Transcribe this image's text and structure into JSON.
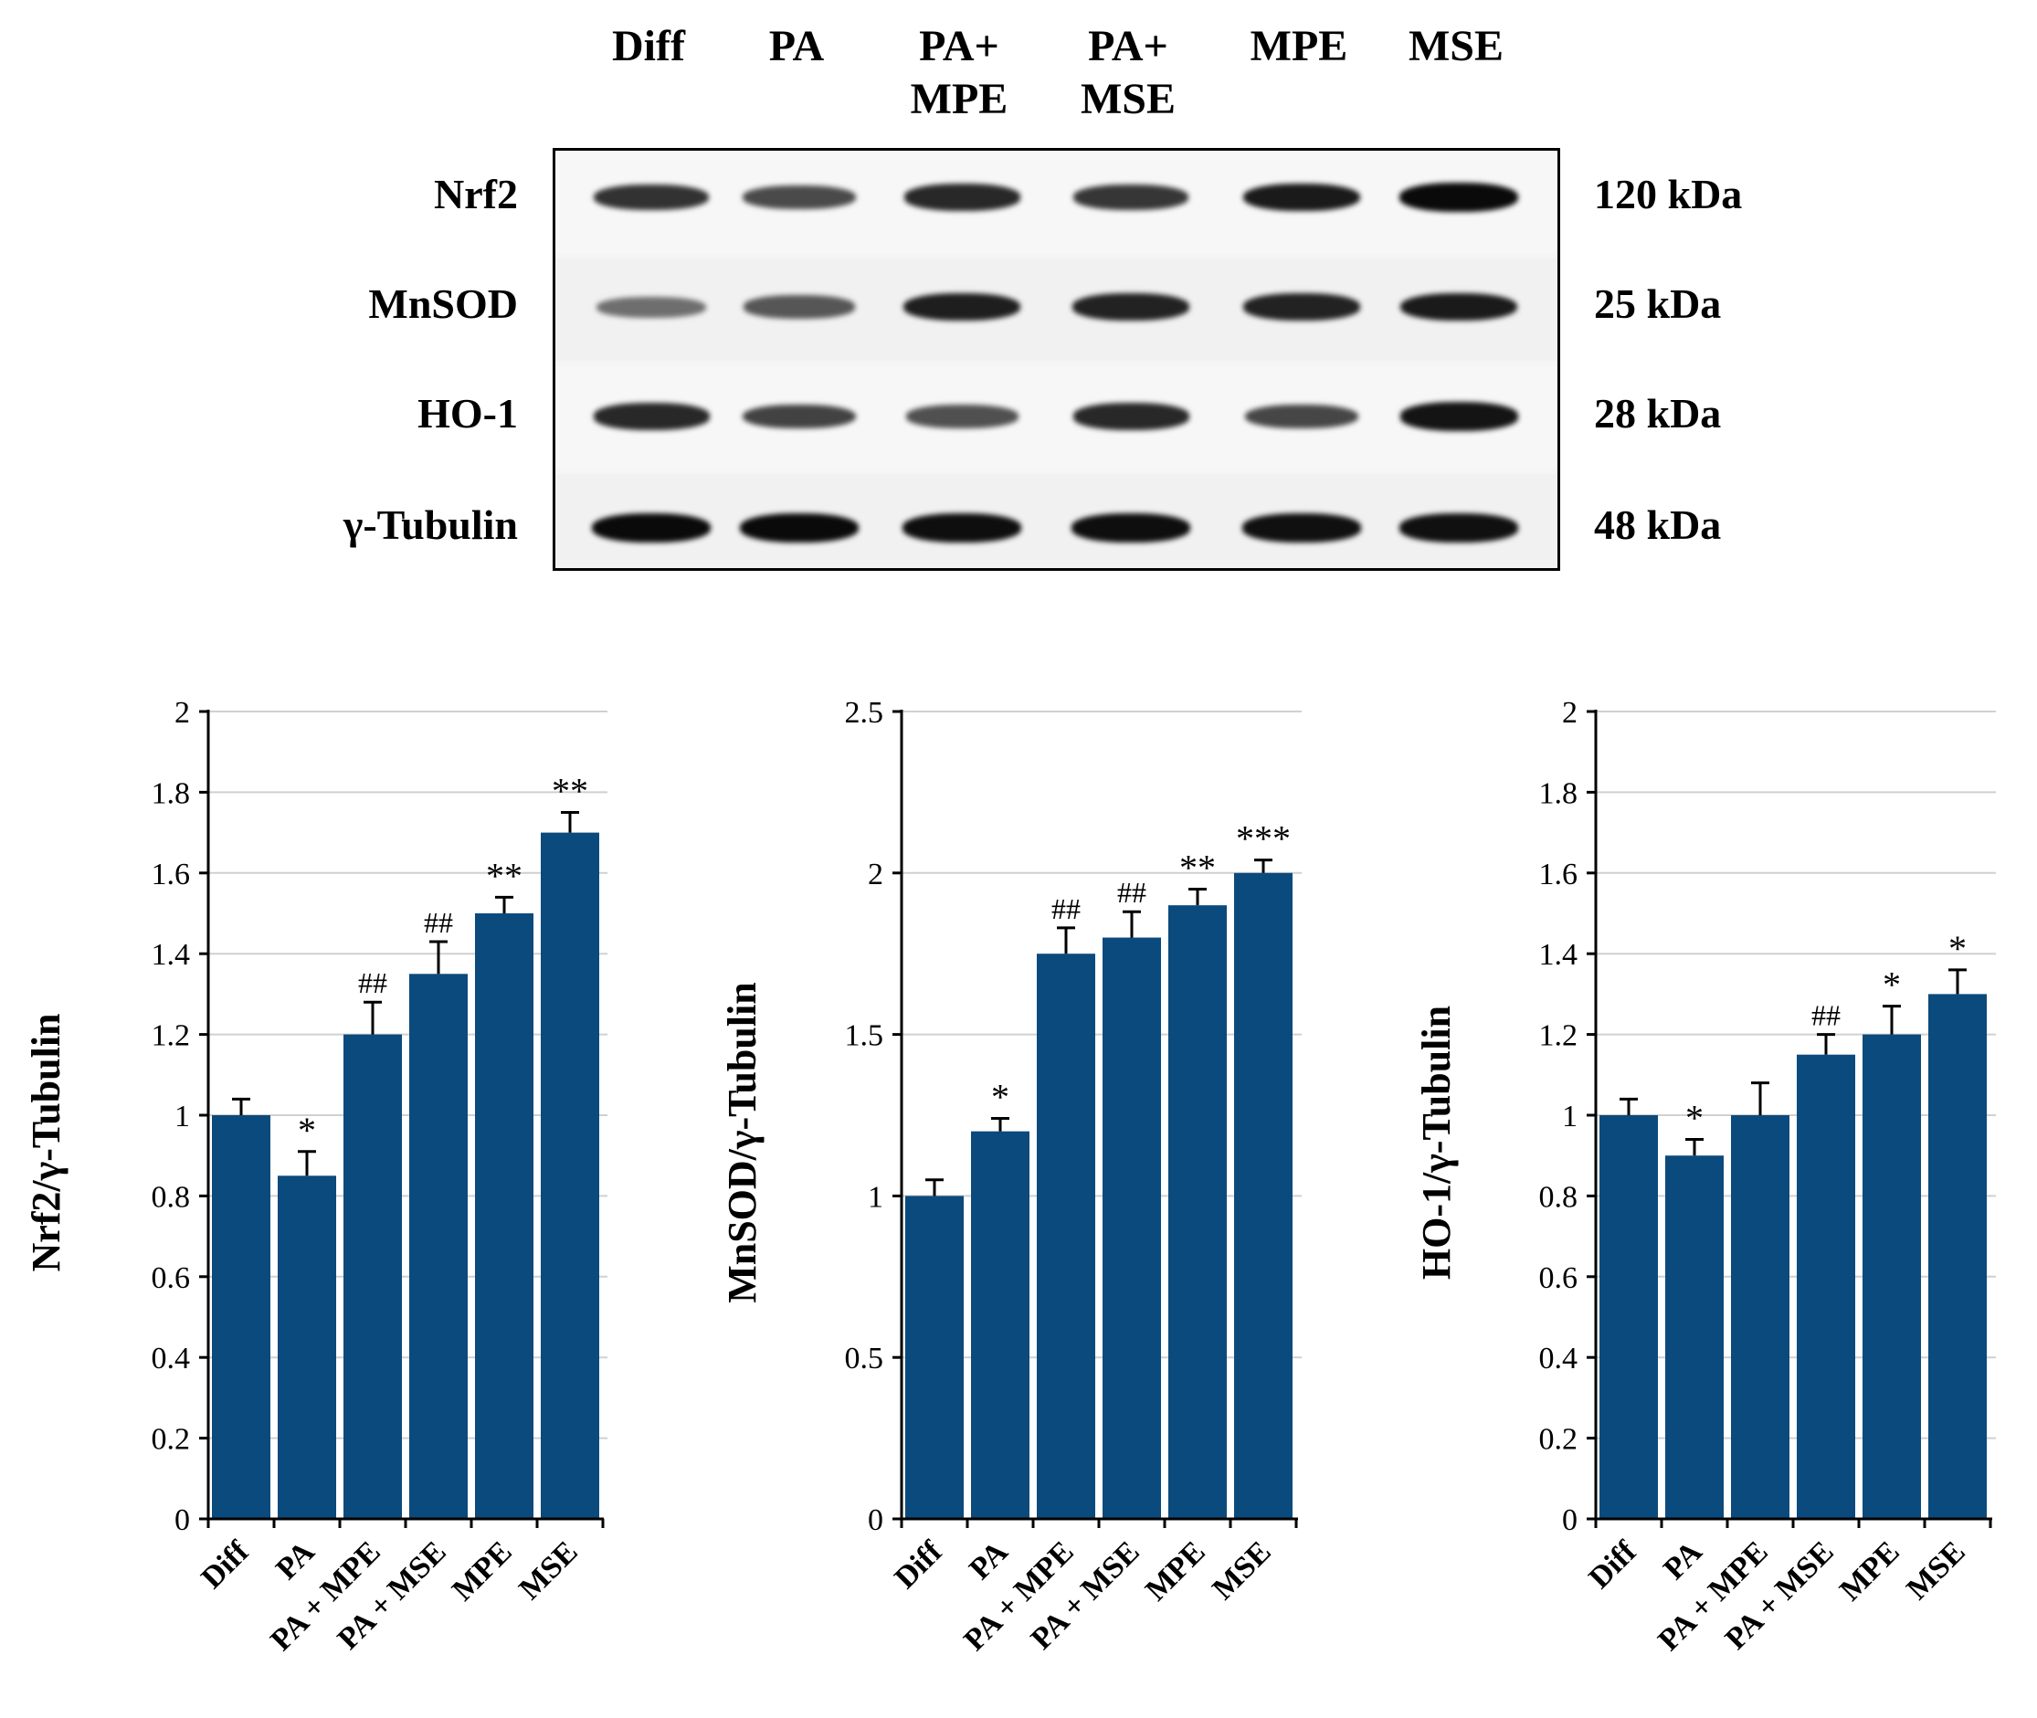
{
  "blot": {
    "lanes": [
      "Diff",
      "PA",
      "PA+\nMPE",
      "PA+\nMSE",
      "MPE",
      "MSE"
    ],
    "rows": [
      {
        "protein": "Nrf2",
        "size": "120 kDa",
        "intensity": [
          0.8,
          0.68,
          0.85,
          0.78,
          0.92,
          1.0
        ]
      },
      {
        "protein": "MnSOD",
        "size": "25 kDa",
        "intensity": [
          0.5,
          0.62,
          0.9,
          0.88,
          0.88,
          0.92
        ]
      },
      {
        "protein": "HO-1",
        "size": "28 kDa",
        "intensity": [
          0.85,
          0.72,
          0.65,
          0.85,
          0.7,
          0.95
        ]
      },
      {
        "protein": "γ-Tubulin",
        "size": "48 kDa",
        "intensity": [
          1.0,
          1.0,
          0.98,
          0.98,
          0.97,
          0.97
        ]
      }
    ]
  },
  "chart_data": [
    {
      "type": "bar",
      "categories": [
        "Diff",
        "PA",
        "PA + MPE",
        "PA + MSE",
        "MPE",
        "MSE"
      ],
      "values": [
        1.0,
        0.85,
        1.2,
        1.35,
        1.5,
        1.7
      ],
      "errors": [
        0.04,
        0.06,
        0.08,
        0.08,
        0.04,
        0.05
      ],
      "annotations": [
        "",
        "*",
        "##",
        "##",
        "**",
        "**"
      ],
      "ylabel": "Nrf2/γ-Tubulin",
      "ylim": [
        0,
        2
      ],
      "yticks": [
        "0",
        "0.2",
        "0.4",
        "0.6",
        "0.8",
        "1",
        "1.2",
        "1.4",
        "1.6",
        "1.8",
        "2"
      ],
      "grid": true,
      "color": "#0b4a7d"
    },
    {
      "type": "bar",
      "categories": [
        "Diff",
        "PA",
        "PA + MPE",
        "PA + MSE",
        "MPE",
        "MSE"
      ],
      "values": [
        1.0,
        1.2,
        1.75,
        1.8,
        1.9,
        2.0
      ],
      "errors": [
        0.05,
        0.04,
        0.08,
        0.08,
        0.05,
        0.04
      ],
      "annotations": [
        "",
        "*",
        "##",
        "##",
        "**",
        "***"
      ],
      "ylabel": "MnSOD/γ-Tubulin",
      "ylim": [
        0,
        2.5
      ],
      "yticks": [
        "0",
        "0.5",
        "1",
        "1.5",
        "2",
        "2.5"
      ],
      "grid": true,
      "color": "#0b4a7d"
    },
    {
      "type": "bar",
      "categories": [
        "Diff",
        "PA",
        "PA + MPE",
        "PA + MSE",
        "MPE",
        "MSE"
      ],
      "values": [
        1.0,
        0.9,
        1.0,
        1.15,
        1.2,
        1.3
      ],
      "errors": [
        0.04,
        0.04,
        0.08,
        0.05,
        0.07,
        0.06
      ],
      "annotations": [
        "",
        "*",
        "",
        "##",
        "*",
        "*"
      ],
      "ylabel": "HO-1/γ-Tubulin",
      "ylim": [
        0,
        2
      ],
      "yticks": [
        "0",
        "0.2",
        "0.4",
        "0.6",
        "0.8",
        "1",
        "1.2",
        "1.4",
        "1.6",
        "1.8",
        "2"
      ],
      "grid": true,
      "color": "#0b4a7d"
    }
  ]
}
